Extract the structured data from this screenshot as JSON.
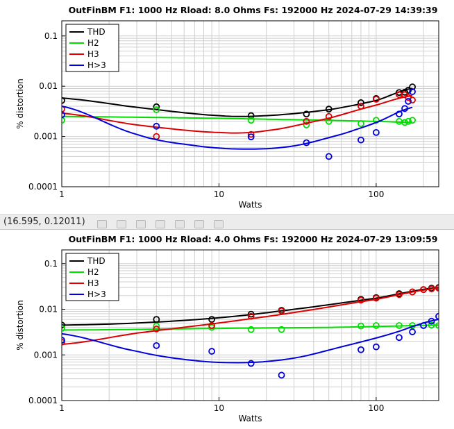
{
  "coordinate_readout": "(16.595, 0.12011)",
  "colors": {
    "THD": "#000000",
    "H2": "#00dd00",
    "H3": "#dd0000",
    "H>3": "#0000dd",
    "grid": "#cfcfcf"
  },
  "chart_data": [
    {
      "type": "scatter",
      "title": "OutFinBM   F1: 1000 Hz   Rload: 8.0 Ohms   Fs: 192000 Hz  2024-07-29 14:39:39",
      "xlabel": "Watts",
      "ylabel": "% distortion",
      "xscale": "log",
      "yscale": "log",
      "xlim": [
        1,
        250
      ],
      "ylim": [
        0.0001,
        0.2
      ],
      "x_ticks": [
        1,
        10,
        100
      ],
      "x_tick_labels": [
        "1",
        "10",
        "100"
      ],
      "y_ticks": [
        0.0001,
        0.001,
        0.01,
        0.1
      ],
      "y_tick_labels": [
        "0.0001",
        "0.001",
        "0.01",
        "0.1"
      ],
      "grid": true,
      "legend_position": "top-left",
      "series": [
        {
          "name": "THD",
          "color": "#000000",
          "points": [
            [
              1,
              0.0052
            ],
            [
              4,
              0.0039
            ],
            [
              16,
              0.0026
            ],
            [
              36,
              0.0028
            ],
            [
              50,
              0.0035
            ],
            [
              80,
              0.0047
            ],
            [
              100,
              0.0057
            ],
            [
              140,
              0.0075
            ],
            [
              152,
              0.0076
            ],
            [
              160,
              0.0083
            ],
            [
              170,
              0.0097
            ]
          ],
          "fit": [
            [
              1,
              0.0058
            ],
            [
              3,
              0.0038
            ],
            [
              10,
              0.0026
            ],
            [
              20,
              0.0026
            ],
            [
              50,
              0.0034
            ],
            [
              100,
              0.0052
            ],
            [
              170,
              0.0091
            ]
          ]
        },
        {
          "name": "H2",
          "color": "#00dd00",
          "points": [
            [
              1,
              0.0021
            ],
            [
              4,
              0.0034
            ],
            [
              16,
              0.0021
            ],
            [
              36,
              0.0017
            ],
            [
              50,
              0.002
            ],
            [
              80,
              0.0018
            ],
            [
              100,
              0.0021
            ],
            [
              140,
              0.002
            ],
            [
              152,
              0.0019
            ],
            [
              160,
              0.002
            ],
            [
              170,
              0.0021
            ]
          ],
          "fit": [
            [
              1,
              0.0025
            ],
            [
              10,
              0.0023
            ],
            [
              50,
              0.0021
            ],
            [
              100,
              0.002
            ],
            [
              170,
              0.0019
            ]
          ]
        },
        {
          "name": "H3",
          "color": "#dd0000",
          "points": [
            [
              1,
              0.0035
            ],
            [
              4,
              0.001
            ],
            [
              16,
              0.0011
            ],
            [
              36,
              0.002
            ],
            [
              50,
              0.0025
            ],
            [
              80,
              0.004
            ],
            [
              100,
              0.0055
            ],
            [
              140,
              0.0068
            ],
            [
              152,
              0.0068
            ],
            [
              160,
              0.006
            ],
            [
              170,
              0.0053
            ]
          ],
          "fit": [
            [
              1,
              0.0029
            ],
            [
              3,
              0.0017
            ],
            [
              10,
              0.0012
            ],
            [
              20,
              0.0013
            ],
            [
              50,
              0.0023
            ],
            [
              100,
              0.0042
            ],
            [
              170,
              0.0065
            ]
          ]
        },
        {
          "name": "H>3",
          "color": "#0000dd",
          "points": [
            [
              1,
              0.0027
            ],
            [
              4,
              0.0016
            ],
            [
              16,
              0.00098
            ],
            [
              36,
              0.00075
            ],
            [
              50,
              0.0004
            ],
            [
              80,
              0.00085
            ],
            [
              100,
              0.0012
            ],
            [
              140,
              0.0028
            ],
            [
              152,
              0.0036
            ],
            [
              160,
              0.005
            ],
            [
              170,
              0.0078
            ]
          ],
          "fit": [
            [
              1,
              0.004
            ],
            [
              3,
              0.0011
            ],
            [
              7,
              0.00066
            ],
            [
              15,
              0.00056
            ],
            [
              30,
              0.00065
            ],
            [
              60,
              0.0011
            ],
            [
              100,
              0.0019
            ],
            [
              170,
              0.0038
            ]
          ]
        }
      ]
    },
    {
      "type": "scatter",
      "title": "OutFinBM  F1: 1000 Hz   Rload: 4.0 Ohms   Fs: 192000 Hz  2024-07-29 13:09:59",
      "xlabel": "Watts",
      "ylabel": "% distortion",
      "xscale": "log",
      "yscale": "log",
      "xlim": [
        1,
        250
      ],
      "ylim": [
        0.0001,
        0.2
      ],
      "x_ticks": [
        1,
        10,
        100
      ],
      "x_tick_labels": [
        "1",
        "10",
        "100"
      ],
      "y_ticks": [
        0.0001,
        0.001,
        0.01,
        0.1
      ],
      "y_tick_labels": [
        "0.0001",
        "0.001",
        "0.01",
        "0.1"
      ],
      "grid": true,
      "legend_position": "top-left",
      "series": [
        {
          "name": "THD",
          "color": "#000000",
          "points": [
            [
              1,
              0.0045
            ],
            [
              4,
              0.006
            ],
            [
              9,
              0.006
            ],
            [
              16,
              0.0078
            ],
            [
              25,
              0.0095
            ],
            [
              80,
              0.0165
            ],
            [
              100,
              0.018
            ],
            [
              140,
              0.022
            ],
            [
              170,
              0.024
            ],
            [
              200,
              0.027
            ],
            [
              225,
              0.029
            ],
            [
              250,
              0.03
            ]
          ],
          "fit": [
            [
              1,
              0.0045
            ],
            [
              3,
              0.005
            ],
            [
              10,
              0.0065
            ],
            [
              30,
              0.01
            ],
            [
              100,
              0.0175
            ],
            [
              250,
              0.03
            ]
          ]
        },
        {
          "name": "H2",
          "color": "#00dd00",
          "points": [
            [
              1,
              0.0038
            ],
            [
              4,
              0.0043
            ],
            [
              9,
              0.004
            ],
            [
              16,
              0.0036
            ],
            [
              25,
              0.0036
            ],
            [
              80,
              0.0043
            ],
            [
              100,
              0.0044
            ],
            [
              140,
              0.0044
            ],
            [
              170,
              0.0044
            ],
            [
              200,
              0.0044
            ],
            [
              225,
              0.0045
            ],
            [
              250,
              0.0044
            ]
          ],
          "fit": [
            [
              1,
              0.0035
            ],
            [
              10,
              0.0038
            ],
            [
              50,
              0.004
            ],
            [
              100,
              0.0042
            ],
            [
              250,
              0.0045
            ]
          ]
        },
        {
          "name": "H3",
          "color": "#dd0000",
          "points": [
            [
              1,
              0.0019
            ],
            [
              4,
              0.0037
            ],
            [
              9,
              0.0044
            ],
            [
              16,
              0.007
            ],
            [
              25,
              0.0092
            ],
            [
              80,
              0.0158
            ],
            [
              100,
              0.0175
            ],
            [
              140,
              0.021
            ],
            [
              170,
              0.024
            ],
            [
              200,
              0.027
            ],
            [
              225,
              0.028
            ],
            [
              250,
              0.029
            ]
          ],
          "fit": [
            [
              1,
              0.0017
            ],
            [
              3,
              0.003
            ],
            [
              10,
              0.005
            ],
            [
              30,
              0.0085
            ],
            [
              100,
              0.0165
            ],
            [
              250,
              0.029
            ]
          ]
        },
        {
          "name": "H>3",
          "color": "#0000dd",
          "points": [
            [
              1,
              0.0021
            ],
            [
              4,
              0.0016
            ],
            [
              9,
              0.0012
            ],
            [
              16,
              0.00065
            ],
            [
              25,
              0.00036
            ],
            [
              80,
              0.0013
            ],
            [
              100,
              0.0015
            ],
            [
              140,
              0.0024
            ],
            [
              170,
              0.0032
            ],
            [
              200,
              0.0044
            ],
            [
              225,
              0.0055
            ],
            [
              250,
              0.007
            ]
          ],
          "fit": [
            [
              1,
              0.0029
            ],
            [
              3,
              0.0012
            ],
            [
              7,
              0.00075
            ],
            [
              15,
              0.00068
            ],
            [
              30,
              0.00085
            ],
            [
              60,
              0.0015
            ],
            [
              120,
              0.0028
            ],
            [
              250,
              0.006
            ]
          ]
        }
      ]
    }
  ]
}
